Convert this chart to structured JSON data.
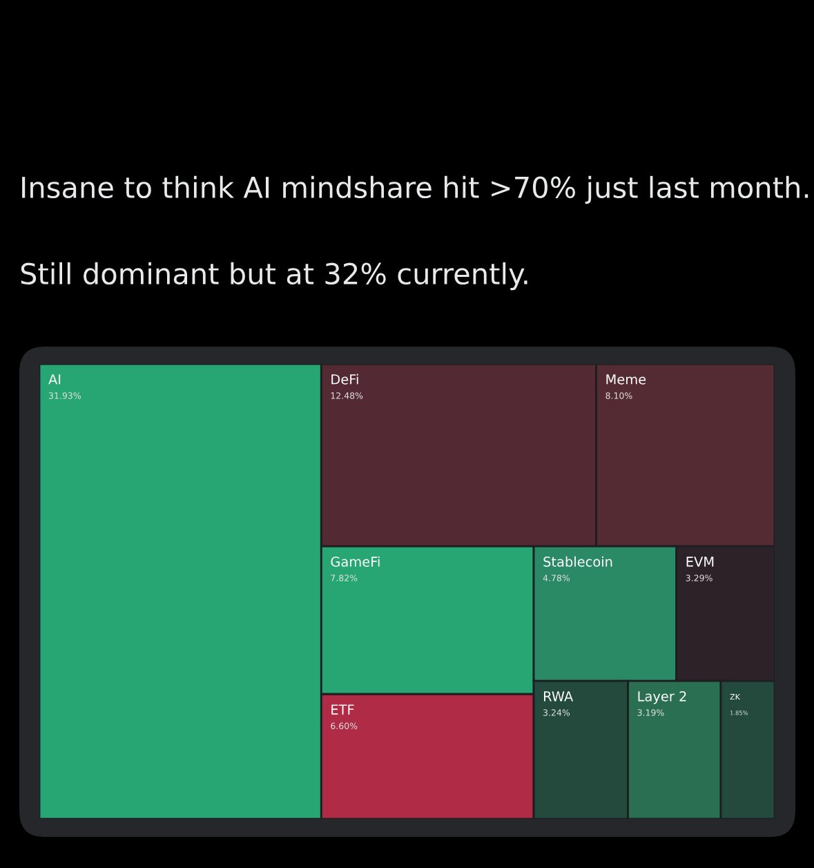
{
  "chart_data": {
    "type": "other",
    "title": "Insane to think AI mindshare hit >70% just last month.",
    "subtitle": "Still dominant but at 32% currently.",
    "categories": [
      "AI",
      "DeFi",
      "Meme",
      "GameFi",
      "ETF",
      "Stablecoin",
      "EVM",
      "RWA",
      "Layer 2",
      "ZK"
    ],
    "values": [
      31.93,
      12.48,
      8.1,
      7.82,
      6.6,
      4.78,
      3.29,
      3.24,
      3.19,
      1.85
    ],
    "value_labels": [
      "31.93%",
      "12.48%",
      "8.10%",
      "7.82%",
      "6.60%",
      "4.78%",
      "3.29%",
      "3.24%",
      "3.19%",
      "1.85%"
    ],
    "colors": [
      "#27a572",
      "#532a33",
      "#542a33",
      "#27a572",
      "#b02b45",
      "#2a8a65",
      "#2e2229",
      "#234a3c",
      "#2a6f52",
      "#234a3c"
    ]
  }
}
